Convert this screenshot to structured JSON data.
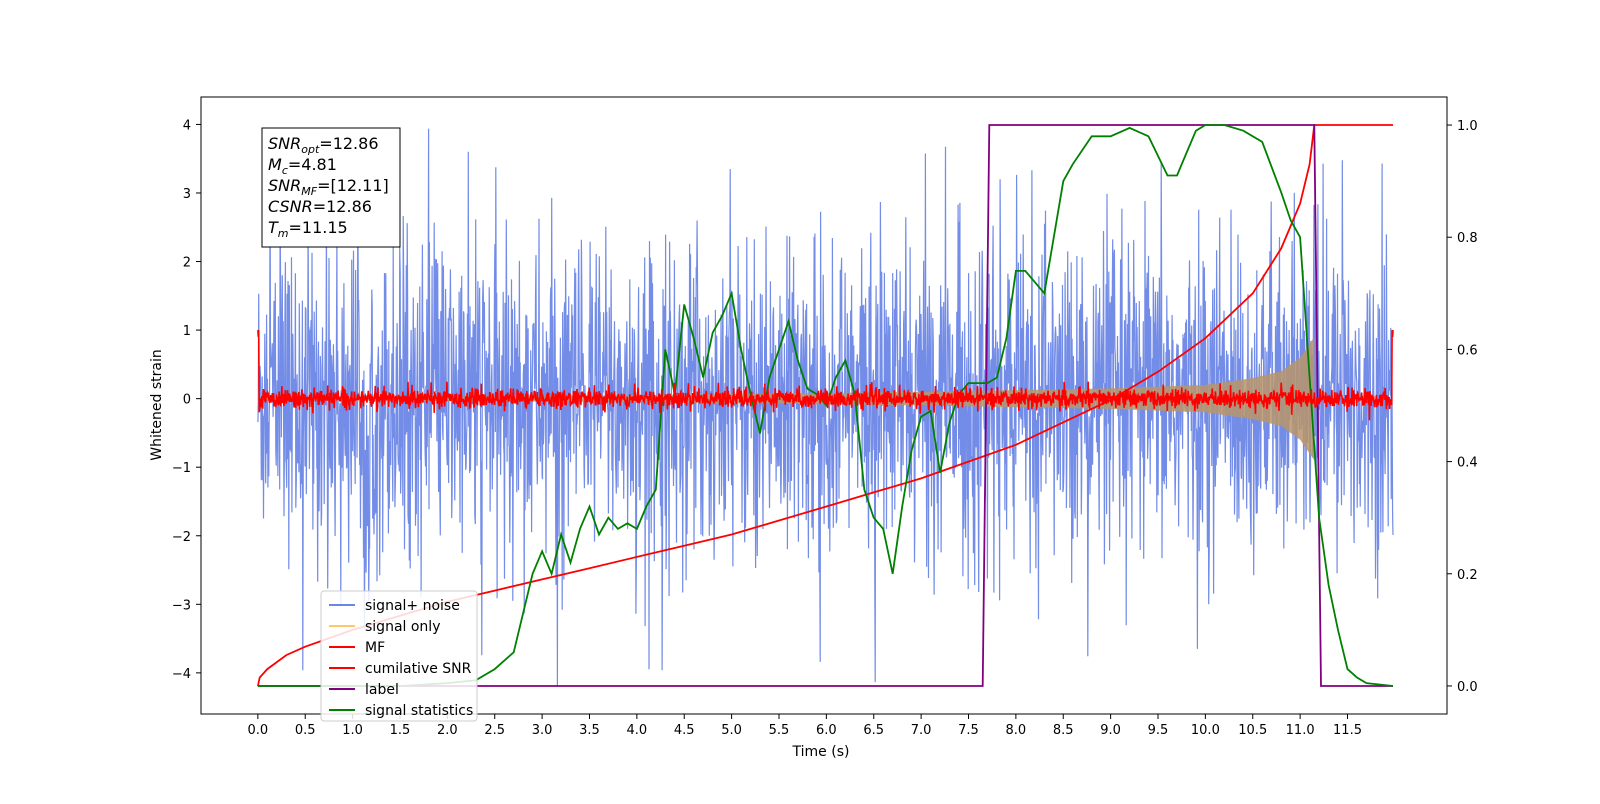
{
  "chart_data": {
    "type": "line",
    "title": "",
    "xlabel": "Time (s)",
    "ylabel": "Whitened strain",
    "ylabel_right": "",
    "xlim": [
      -0.6,
      12.55
    ],
    "ylim": [
      -4.6,
      4.4
    ],
    "ylim_right": [
      -0.05,
      1.05
    ],
    "x_ticks": [
      0.0,
      0.5,
      1.0,
      1.5,
      2.0,
      2.5,
      3.0,
      3.5,
      4.0,
      4.5,
      5.0,
      5.5,
      6.0,
      6.5,
      7.0,
      7.5,
      8.0,
      8.5,
      9.0,
      9.5,
      10.0,
      10.5,
      11.0,
      11.5
    ],
    "x_tick_labels": [
      "0.0",
      "0.5",
      "1.0",
      "1.5",
      "2.0",
      "2.5",
      "3.0",
      "3.5",
      "4.0",
      "4.5",
      "5.0",
      "5.5",
      "6.0",
      "6.5",
      "7.0",
      "7.5",
      "8.0",
      "8.5",
      "9.0",
      "9.5",
      "10.0",
      "10.5",
      "11.0",
      "11.5"
    ],
    "y_ticks": [
      -4,
      -3,
      -2,
      -1,
      0,
      1,
      2,
      3,
      4
    ],
    "y_tick_labels": [
      "−4",
      "−3",
      "−2",
      "−1",
      "0",
      "1",
      "2",
      "3",
      "4"
    ],
    "y_right_ticks": [
      0.0,
      0.2,
      0.4,
      0.6,
      0.8,
      1.0
    ],
    "y_right_tick_labels": [
      "0.0",
      "0.2",
      "0.4",
      "0.6",
      "0.8",
      "1.0"
    ],
    "grid": false,
    "legend_position": "lower-left",
    "legend": [
      {
        "label": "signal+ noise",
        "color": "#6a86e6"
      },
      {
        "label": "signal only",
        "color": "#ffc66e"
      },
      {
        "label": "MF",
        "color": "#ff0000"
      },
      {
        "label": "cumilative SNR",
        "color": "#ff0000"
      },
      {
        "label": "label",
        "color": "#800080"
      },
      {
        "label": "signal statistics",
        "color": "#008000"
      }
    ],
    "annotation": {
      "lines": [
        {
          "base": "SNR",
          "sub": "opt",
          "value": "=12.86"
        },
        {
          "base": "M",
          "sub": "c",
          "value": "=4.81"
        },
        {
          "base": "SNR",
          "sub": "MF",
          "value": "=[12.11]"
        },
        {
          "base": "CSNR",
          "sub": "",
          "value": "=12.86"
        },
        {
          "base": "T",
          "sub": "m",
          "value": "=11.15"
        }
      ]
    },
    "series": [
      {
        "name": "signal+ noise",
        "axis": "left",
        "style": "noise",
        "color": "#6a86e6",
        "x_range": [
          0.0,
          11.98
        ],
        "envelope_typical": 2.0,
        "envelope_peak": 4.0,
        "envelope_min": -4.2
      },
      {
        "name": "signal only",
        "axis": "left",
        "style": "chirp_envelope",
        "color": "#ffc66e",
        "x_range": [
          0.0,
          11.15
        ],
        "amplitude": [
          [
            0.0,
            0.02
          ],
          [
            4.0,
            0.05
          ],
          [
            7.0,
            0.1
          ],
          [
            9.0,
            0.15
          ],
          [
            10.0,
            0.2
          ],
          [
            10.5,
            0.3
          ],
          [
            10.8,
            0.4
          ],
          [
            11.0,
            0.6
          ],
          [
            11.1,
            0.8
          ],
          [
            11.15,
            0.9
          ]
        ]
      },
      {
        "name": "MF",
        "axis": "left",
        "style": "noise",
        "color": "#ff0000",
        "x_range": [
          0.0,
          11.98
        ],
        "envelope_typical": 0.12,
        "envelope_peak": 0.25,
        "edge_value": 1.0
      },
      {
        "name": "cumilative SNR",
        "axis": "right",
        "color": "#ff0000",
        "x": [
          0.0,
          0.02,
          0.1,
          0.3,
          0.5,
          1.0,
          1.5,
          2.0,
          2.5,
          3.0,
          3.5,
          4.0,
          4.5,
          5.0,
          5.5,
          6.0,
          6.5,
          7.0,
          7.5,
          8.0,
          8.5,
          9.0,
          9.5,
          10.0,
          10.5,
          10.8,
          11.0,
          11.1,
          11.15,
          11.98
        ],
        "y": [
          0.0,
          0.015,
          0.03,
          0.055,
          0.07,
          0.1,
          0.125,
          0.15,
          0.17,
          0.19,
          0.21,
          0.23,
          0.25,
          0.27,
          0.295,
          0.32,
          0.345,
          0.37,
          0.4,
          0.43,
          0.47,
          0.51,
          0.56,
          0.62,
          0.7,
          0.78,
          0.86,
          0.93,
          1.0,
          1.0
        ]
      },
      {
        "name": "label",
        "axis": "right",
        "color": "#800080",
        "x": [
          0.0,
          7.65,
          7.72,
          11.15,
          11.22,
          11.98
        ],
        "y": [
          0.0,
          0.0,
          1.0,
          1.0,
          0.0,
          0.0
        ]
      },
      {
        "name": "signal statistics",
        "axis": "right",
        "color": "#008000",
        "x": [
          0.0,
          0.5,
          1.0,
          1.5,
          2.0,
          2.3,
          2.5,
          2.7,
          2.9,
          3.0,
          3.1,
          3.2,
          3.3,
          3.4,
          3.5,
          3.6,
          3.7,
          3.8,
          3.9,
          4.0,
          4.1,
          4.2,
          4.3,
          4.4,
          4.5,
          4.6,
          4.7,
          4.8,
          4.9,
          5.0,
          5.1,
          5.2,
          5.3,
          5.4,
          5.5,
          5.6,
          5.7,
          5.8,
          5.9,
          6.0,
          6.1,
          6.2,
          6.3,
          6.4,
          6.5,
          6.6,
          6.7,
          6.8,
          6.9,
          7.0,
          7.1,
          7.2,
          7.3,
          7.4,
          7.5,
          7.6,
          7.7,
          7.8,
          7.9,
          8.0,
          8.1,
          8.2,
          8.3,
          8.4,
          8.5,
          8.6,
          8.8,
          9.0,
          9.2,
          9.4,
          9.6,
          9.7,
          9.8,
          9.9,
          10.0,
          10.2,
          10.4,
          10.6,
          10.8,
          10.9,
          11.0,
          11.1,
          11.2,
          11.3,
          11.4,
          11.5,
          11.6,
          11.7,
          11.98
        ],
        "y": [
          0.0,
          0.0,
          0.0,
          0.0,
          0.005,
          0.01,
          0.03,
          0.06,
          0.2,
          0.24,
          0.2,
          0.27,
          0.22,
          0.28,
          0.32,
          0.27,
          0.3,
          0.28,
          0.29,
          0.28,
          0.32,
          0.35,
          0.6,
          0.52,
          0.68,
          0.62,
          0.55,
          0.63,
          0.66,
          0.7,
          0.6,
          0.52,
          0.45,
          0.55,
          0.6,
          0.65,
          0.58,
          0.53,
          0.52,
          0.5,
          0.55,
          0.58,
          0.52,
          0.35,
          0.3,
          0.28,
          0.2,
          0.32,
          0.42,
          0.48,
          0.49,
          0.38,
          0.47,
          0.52,
          0.54,
          0.54,
          0.54,
          0.55,
          0.62,
          0.74,
          0.74,
          0.72,
          0.7,
          0.8,
          0.9,
          0.93,
          0.98,
          0.98,
          0.995,
          0.98,
          0.91,
          0.91,
          0.95,
          0.99,
          1.0,
          1.0,
          0.99,
          0.97,
          0.88,
          0.83,
          0.8,
          0.55,
          0.3,
          0.18,
          0.1,
          0.03,
          0.015,
          0.005,
          0.0
        ]
      }
    ]
  }
}
